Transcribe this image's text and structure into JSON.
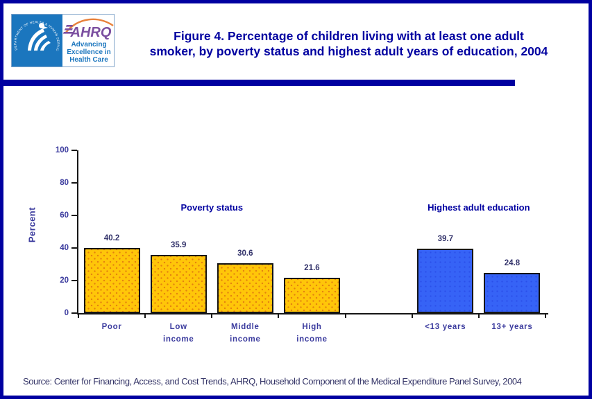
{
  "header": {
    "logo": {
      "ring_text": "DEPARTMENT OF HEALTH & HUMAN SERVICES · USA",
      "ahrq_acronym": "AHRQ",
      "tagline": [
        "Advancing",
        "Excellence in",
        "Health Care"
      ]
    },
    "title_lines": [
      "Figure 4. Percentage of children living with at least one adult",
      "smoker, by poverty status and highest adult years of education, 2004"
    ]
  },
  "chart_data": {
    "type": "bar",
    "ylabel": "Percent",
    "ylim": [
      0,
      100
    ],
    "yticks": [
      0,
      20,
      40,
      60,
      80,
      100
    ],
    "grid": false,
    "groups": [
      {
        "label": "Poverty status",
        "color": "#FFC609",
        "categories": [
          [
            "Poor"
          ],
          [
            "Low",
            "income"
          ],
          [
            "Middle",
            "income"
          ],
          [
            "High",
            "income"
          ]
        ],
        "values": [
          40.2,
          35.9,
          30.6,
          21.6
        ]
      },
      {
        "label": "Highest adult education",
        "color": "#3663F6",
        "categories": [
          [
            "<13 years"
          ],
          [
            "13+ years"
          ]
        ],
        "values": [
          39.7,
          24.8
        ]
      }
    ]
  },
  "footer": {
    "source": "Source: Center for Financing, Access, and Cost Trends, AHRQ, Household Component of the Medical Expenditure Panel Survey, 2004"
  },
  "colors": {
    "navy": "#0000A0",
    "bar_yellow": "#FFC609",
    "bar_blue": "#3663F6",
    "hhs_blue": "#1B76BE",
    "ahrq_purple": "#7B4FA0",
    "arc_orange": "#E8823D"
  }
}
